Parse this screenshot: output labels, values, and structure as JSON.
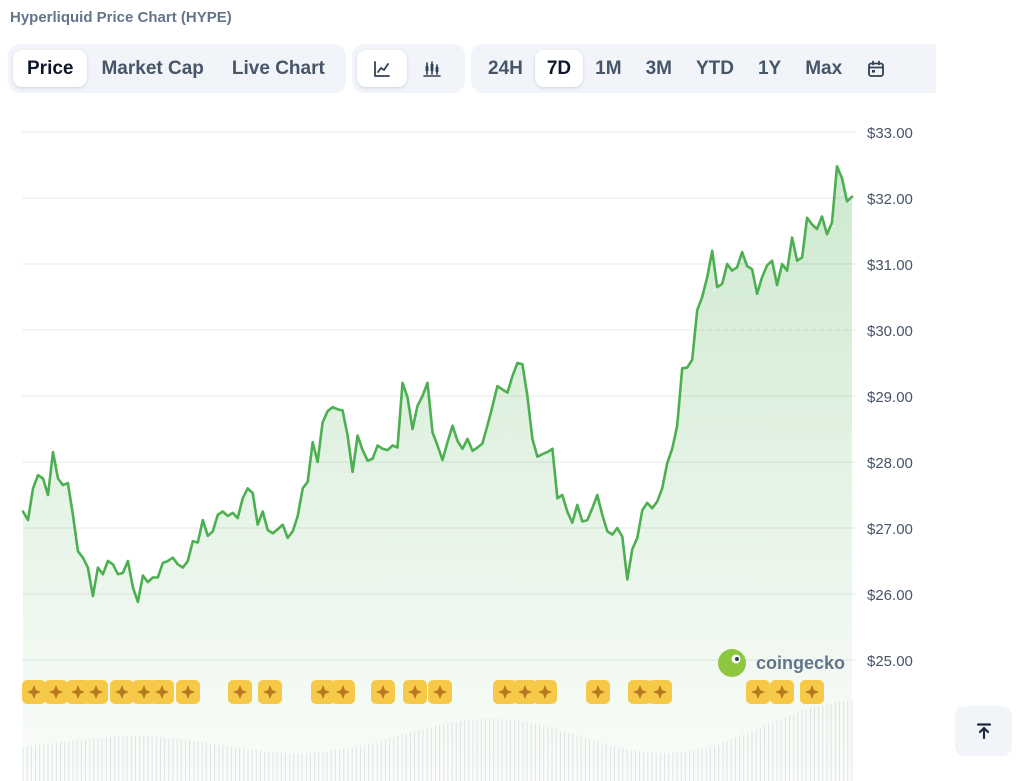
{
  "page": {
    "title": "Hyperliquid Price Chart (HYPE)"
  },
  "tabs": [
    {
      "label": "Price",
      "active": true
    },
    {
      "label": "Market Cap",
      "active": false
    },
    {
      "label": "Live Chart",
      "active": false
    }
  ],
  "views": [
    {
      "icon": "line-chart-icon",
      "active": true
    },
    {
      "icon": "candlestick-chart-icon",
      "active": false
    }
  ],
  "ranges": [
    {
      "label": "24H",
      "active": false
    },
    {
      "label": "7D",
      "active": true
    },
    {
      "label": "1M",
      "active": false
    },
    {
      "label": "3M",
      "active": false
    },
    {
      "label": "YTD",
      "active": false
    },
    {
      "label": "1Y",
      "active": false
    },
    {
      "label": "Max",
      "active": false
    }
  ],
  "calendar_icon": "calendar-icon",
  "watermark": {
    "text": "coingecko",
    "icon": "coingecko-logo-icon"
  },
  "scroll_top_icon": "arrow-to-top-icon",
  "colors": {
    "line": "#4caf50",
    "fill": "#dcf3dc",
    "marker": "#f7c948",
    "grid": "#e5e7eb",
    "volume": "#e5e7eb"
  },
  "chart_data": {
    "type": "line",
    "title": "",
    "xlabel": "",
    "ylabel": "",
    "y_ticks": [
      "$33.00",
      "$32.00",
      "$31.00",
      "$30.00",
      "$29.00",
      "$28.00",
      "$27.00",
      "$26.00",
      "$25.00"
    ],
    "y_tick_values": [
      33,
      32,
      31,
      30,
      29,
      28,
      27,
      26,
      25
    ],
    "ylim": [
      24.45,
      33.35
    ],
    "grid": true,
    "series": [
      {
        "values": [
          27.25,
          27.12,
          27.6,
          27.8,
          27.75,
          27.5,
          28.15,
          27.75,
          27.65,
          27.68,
          27.2,
          26.65,
          26.55,
          26.4,
          25.97,
          26.4,
          26.3,
          26.5,
          26.45,
          26.3,
          26.32,
          26.5,
          26.1,
          25.88,
          26.28,
          26.18,
          26.25,
          26.25,
          26.47,
          26.5,
          26.55,
          26.45,
          26.4,
          26.5,
          26.8,
          26.78,
          27.12,
          26.88,
          26.95,
          27.2,
          27.25,
          27.18,
          27.23,
          27.15,
          27.45,
          27.6,
          27.53,
          27.05,
          27.25,
          26.97,
          26.92,
          26.98,
          27.05,
          26.85,
          26.95,
          27.18,
          27.6,
          27.7,
          28.3,
          28.0,
          28.6,
          28.77,
          28.83,
          28.8,
          28.78,
          28.4,
          27.85,
          28.4,
          28.18,
          28.02,
          28.05,
          28.25,
          28.2,
          28.18,
          28.25,
          28.22,
          29.2,
          28.98,
          28.5,
          28.85,
          29.0,
          29.2,
          28.45,
          28.25,
          28.03,
          28.3,
          28.55,
          28.32,
          28.2,
          28.35,
          28.17,
          28.22,
          28.28,
          28.55,
          28.84,
          29.15,
          29.1,
          29.05,
          29.3,
          29.5,
          29.48,
          29.0,
          28.35,
          28.08,
          28.12,
          28.15,
          28.2,
          27.45,
          27.5,
          27.25,
          27.08,
          27.35,
          27.1,
          27.12,
          27.3,
          27.5,
          27.2,
          26.95,
          26.9,
          27.0,
          26.87,
          26.22,
          26.68,
          26.85,
          27.27,
          27.38,
          27.3,
          27.4,
          27.6,
          27.98,
          28.2,
          28.55,
          29.42,
          29.43,
          29.55,
          30.3,
          30.5,
          30.8,
          31.2,
          30.65,
          30.7,
          31.0,
          30.9,
          30.95,
          31.18,
          30.97,
          30.92,
          30.55,
          30.8,
          30.98,
          31.05,
          30.68,
          31.0,
          30.9,
          31.4,
          31.05,
          31.1,
          31.7,
          31.6,
          31.53,
          31.72,
          31.45,
          31.63,
          32.48,
          32.3,
          31.95,
          32.02
        ]
      }
    ]
  }
}
